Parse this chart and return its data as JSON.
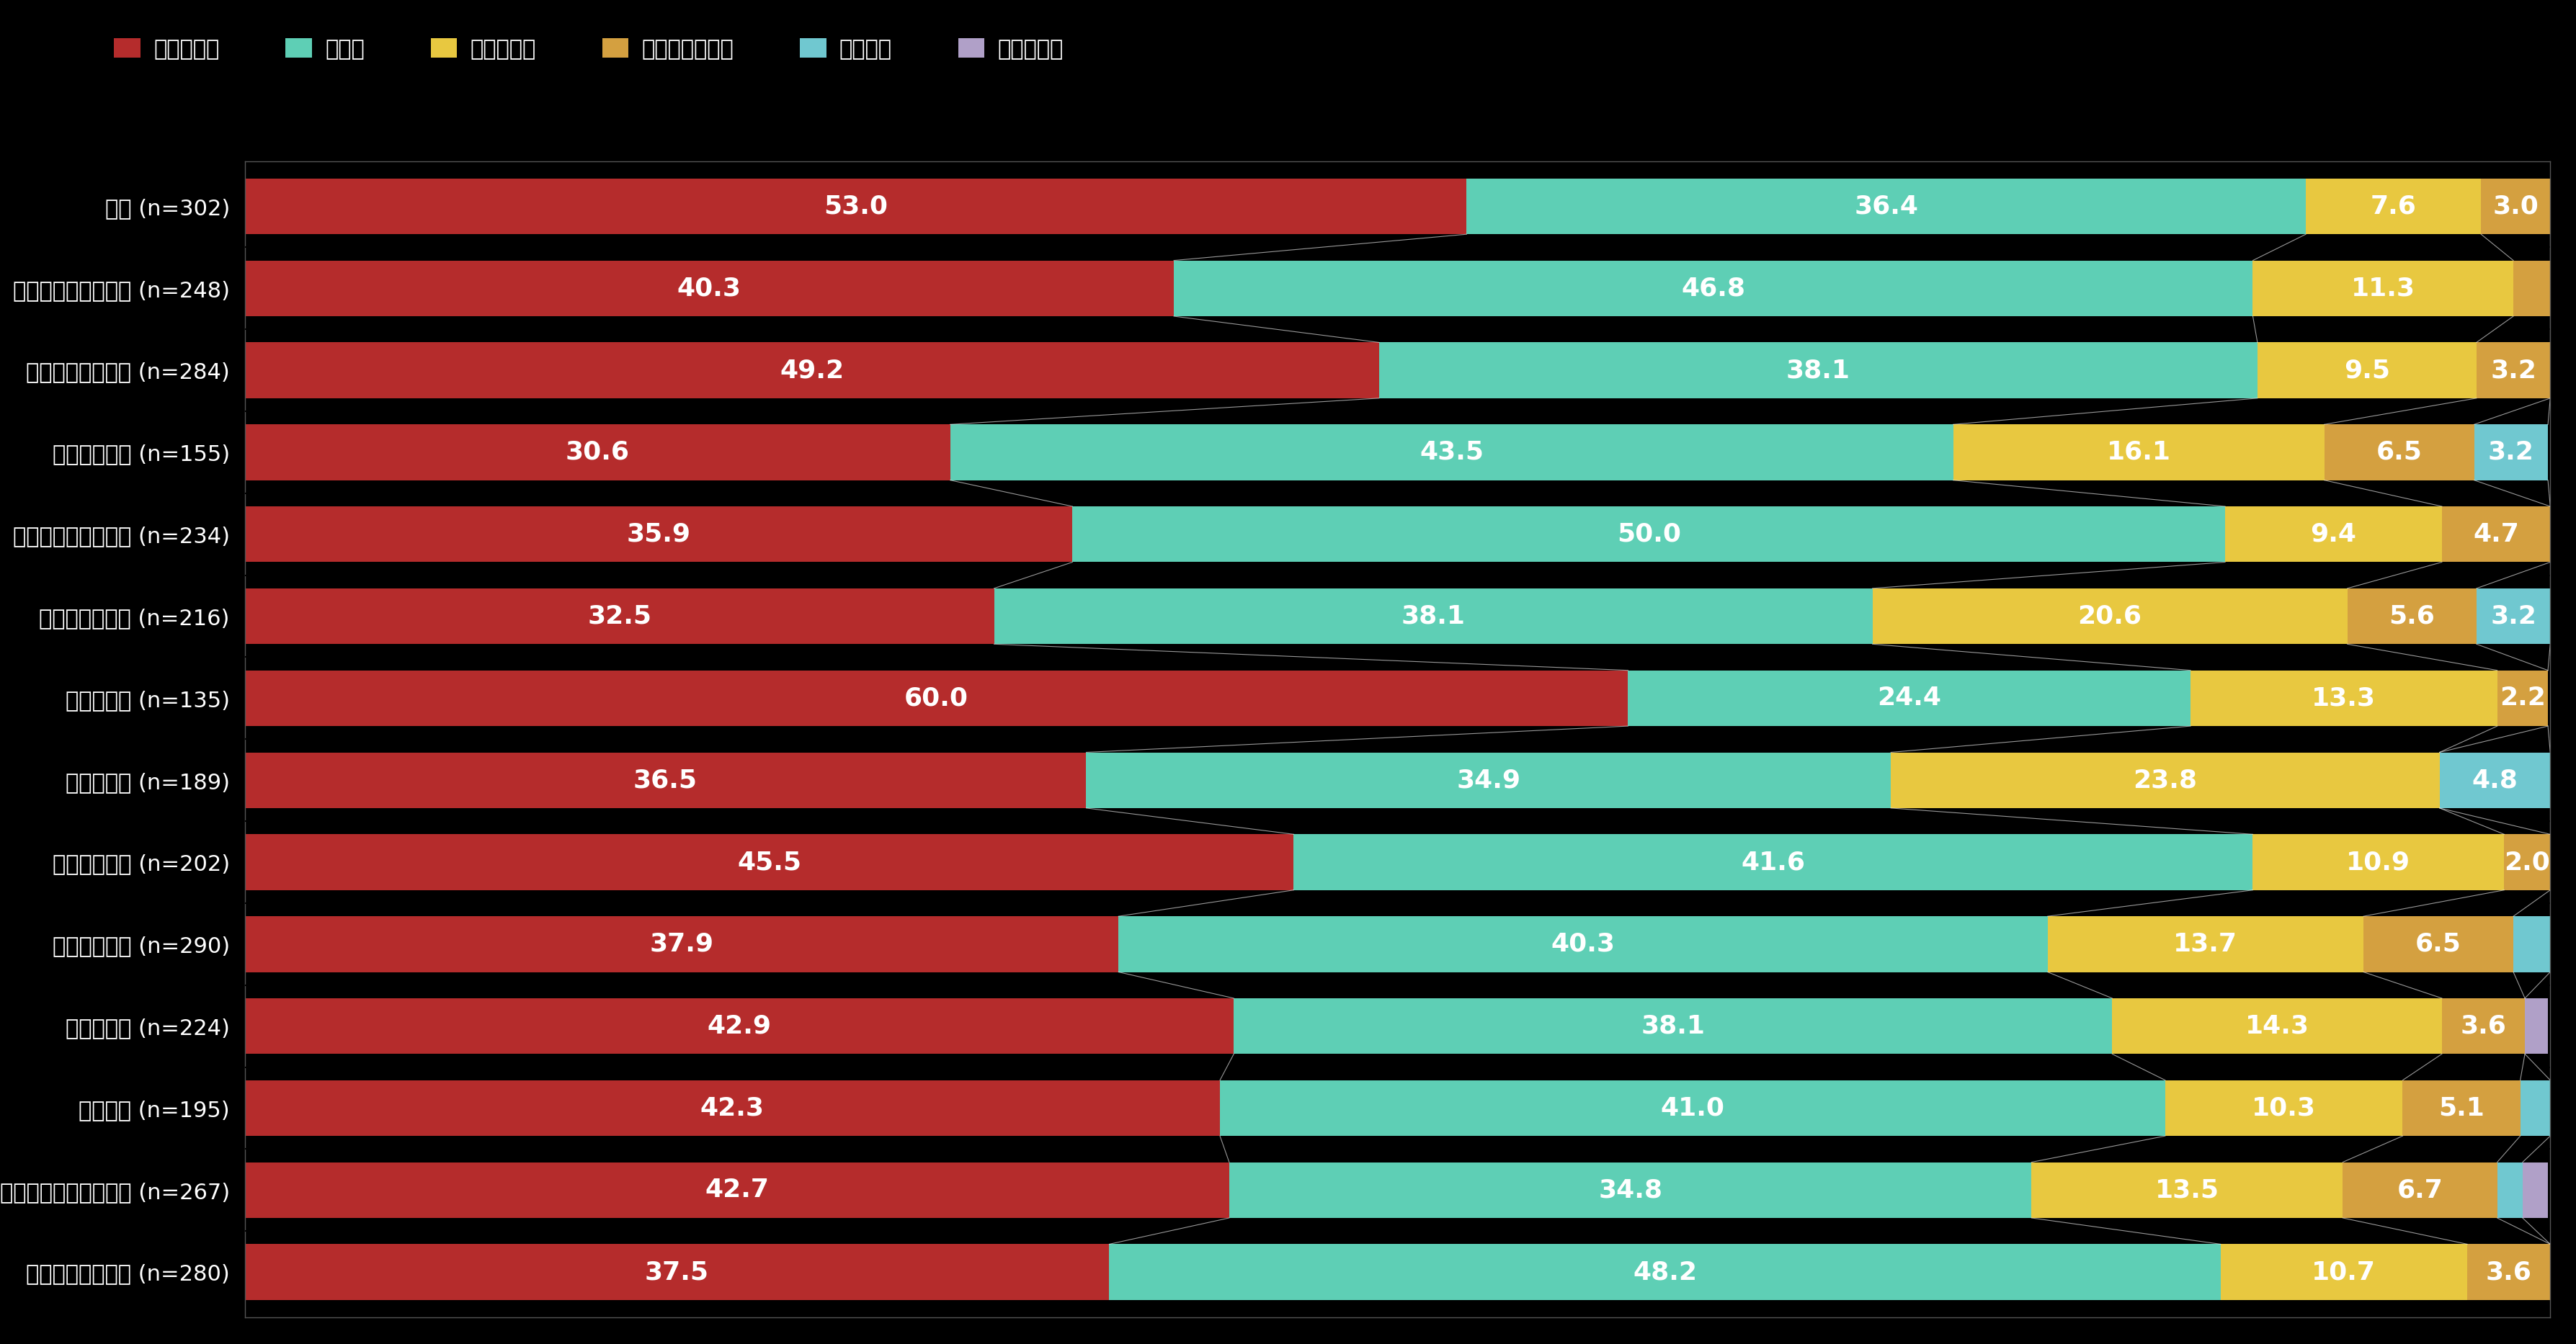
{
  "background_color": "#000000",
  "colors": [
    "#b52c2c",
    "#5ecfb5",
    "#e8c840",
    "#d4a040",
    "#70c8d0",
    "#b0a0c8"
  ],
  "legend_labels": [
    "強く感じる",
    "感じる",
    "やや感じる",
    "あまり感じない",
    "感じない",
    "わからない"
  ],
  "row_labels": [
    "全体 (n=302)",
    "リーダーシップ研修 (n=248)",
    "メンター・コーチ (n=284)",
    "ビジョン共有 (n=155)",
    "チームビルディング (n=234)",
    "フィードバック (n=216)",
    "コーチング (n=135)",
    "誕生日当日 (n=189)",
    "コミュニチィ (n=202)",
    "プロジェクト (n=290)",
    "チャレンジ (n=224)",
    "外部研修 (n=195)",
    "ゲーミフィケーション (n=267)",
    "アップワード先輪 (n=280)"
  ],
  "data": [
    [
      53.0,
      36.4,
      7.6,
      3.0,
      0.0,
      0.0
    ],
    [
      40.3,
      46.8,
      11.3,
      1.6,
      0.0,
      0.0
    ],
    [
      49.2,
      38.1,
      9.5,
      3.2,
      0.0,
      0.0
    ],
    [
      30.6,
      43.5,
      16.1,
      6.5,
      3.2,
      0.0
    ],
    [
      35.9,
      50.0,
      9.4,
      4.7,
      0.0,
      0.0
    ],
    [
      32.5,
      38.1,
      20.6,
      5.6,
      3.2,
      0.0
    ],
    [
      60.0,
      24.4,
      13.3,
      2.2,
      0.0,
      0.0
    ],
    [
      36.5,
      34.9,
      23.8,
      0.0,
      4.8,
      0.0
    ],
    [
      45.5,
      41.6,
      10.9,
      2.0,
      0.0,
      0.0
    ],
    [
      37.9,
      40.3,
      13.7,
      6.5,
      1.6,
      0.0
    ],
    [
      42.9,
      38.1,
      14.3,
      3.6,
      0.0,
      1.0
    ],
    [
      42.3,
      41.0,
      10.3,
      5.1,
      1.3,
      0.0
    ],
    [
      42.7,
      34.8,
      13.5,
      6.7,
      1.1,
      1.1
    ],
    [
      37.5,
      48.2,
      10.7,
      3.6,
      0.0,
      0.0
    ]
  ]
}
